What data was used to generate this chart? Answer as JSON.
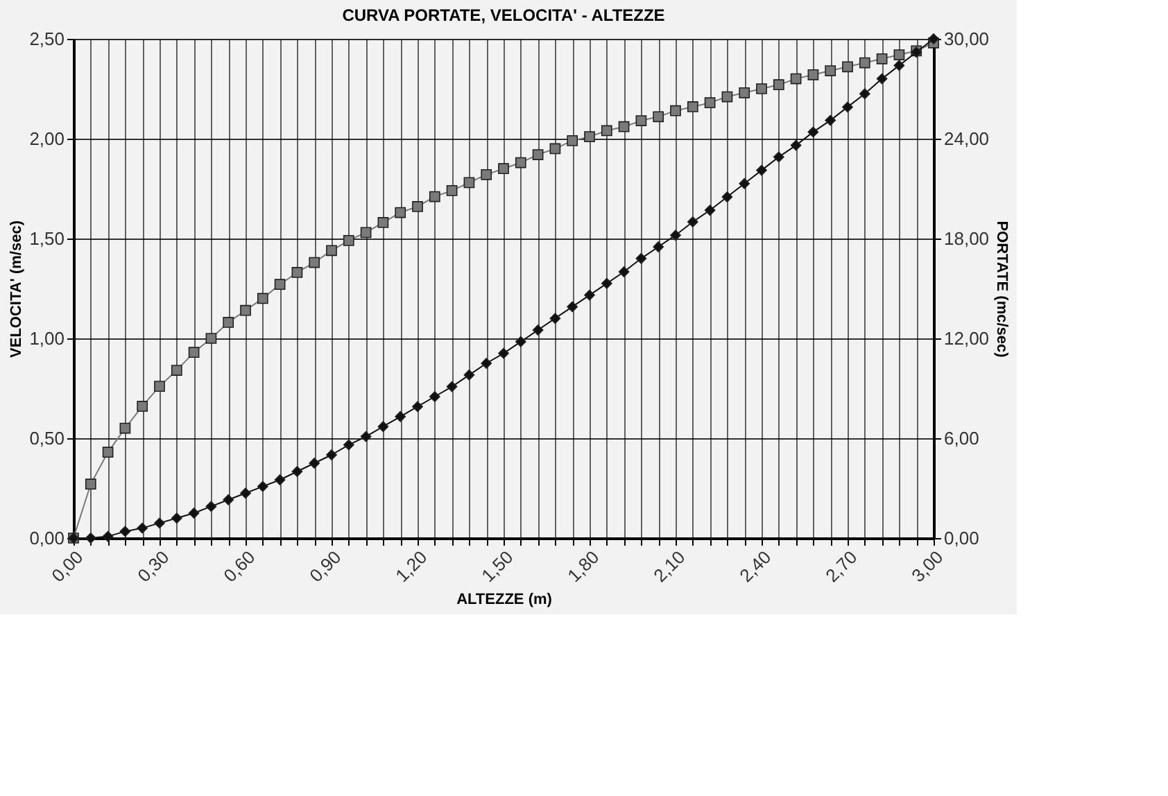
{
  "chart_data": {
    "type": "line",
    "title": "CURVA PORTATE, VELOCITA' - ALTEZZE",
    "xlabel": "ALTEZZE (m)",
    "ylabel": "VELOCITA' (m/sec)",
    "y2label": "PORTATE (mc/sec)",
    "x": [
      0,
      0.06,
      0.12,
      0.18,
      0.24,
      0.3,
      0.36,
      0.42,
      0.48,
      0.54,
      0.6,
      0.66,
      0.72,
      0.78,
      0.84,
      0.9,
      0.96,
      1.02,
      1.08,
      1.14,
      1.2,
      1.26,
      1.32,
      1.38,
      1.44,
      1.5,
      1.56,
      1.62,
      1.68,
      1.74,
      1.8,
      1.86,
      1.92,
      1.98,
      2.04,
      2.1,
      2.16,
      2.22,
      2.28,
      2.34,
      2.4,
      2.46,
      2.52,
      2.58,
      2.64,
      2.7,
      2.76,
      2.82,
      2.88,
      2.94,
      3.0
    ],
    "series": [
      {
        "color": "#7a7a7a",
        "marker": "square",
        "values": [
          0,
          0.27,
          0.43,
          0.55,
          0.66,
          0.76,
          0.84,
          0.93,
          1.0,
          1.08,
          1.14,
          1.2,
          1.27,
          1.33,
          1.38,
          1.44,
          1.49,
          1.53,
          1.58,
          1.63,
          1.66,
          1.71,
          1.74,
          1.78,
          1.82,
          1.85,
          1.88,
          1.92,
          1.95,
          1.99,
          2.01,
          2.04,
          2.06,
          2.09,
          2.11,
          2.14,
          2.16,
          2.18,
          2.21,
          2.23,
          2.25,
          2.27,
          2.3,
          2.32,
          2.34,
          2.36,
          2.38,
          2.4,
          2.42,
          2.44,
          2.48
        ]
      },
      {
        "color": "#111111",
        "marker": "diamond",
        "axis": "y2",
        "values": [
          0,
          0.0,
          0.1,
          0.4,
          0.6,
          0.9,
          1.2,
          1.5,
          1.9,
          2.3,
          2.7,
          3.1,
          3.5,
          4.0,
          4.5,
          5.0,
          5.6,
          6.1,
          6.7,
          7.3,
          7.9,
          8.5,
          9.1,
          9.8,
          10.5,
          11.1,
          11.8,
          12.5,
          13.2,
          13.9,
          14.6,
          15.3,
          16.0,
          16.8,
          17.5,
          18.2,
          19.0,
          19.7,
          20.5,
          21.3,
          22.1,
          22.9,
          23.6,
          24.4,
          25.1,
          25.9,
          26.7,
          27.6,
          28.4,
          29.2,
          30.0
        ]
      }
    ],
    "xlim": [
      0,
      3.0
    ],
    "xticks": [
      {
        "value": 0,
        "label": "0,00"
      },
      {
        "value": 0.06,
        "label": null
      },
      {
        "value": 0.12,
        "label": null
      },
      {
        "value": 0.18,
        "label": null
      },
      {
        "value": 0.24,
        "label": null
      },
      {
        "value": 0.3,
        "label": "0,30"
      },
      {
        "value": 0.36,
        "label": null
      },
      {
        "value": 0.42,
        "label": null
      },
      {
        "value": 0.48,
        "label": null
      },
      {
        "value": 0.54,
        "label": null
      },
      {
        "value": 0.6,
        "label": "0,60"
      },
      {
        "value": 0.66,
        "label": null
      },
      {
        "value": 0.72,
        "label": null
      },
      {
        "value": 0.78,
        "label": null
      },
      {
        "value": 0.84,
        "label": null
      },
      {
        "value": 0.9,
        "label": "0,90"
      },
      {
        "value": 0.96,
        "label": null
      },
      {
        "value": 1.02,
        "label": null
      },
      {
        "value": 1.08,
        "label": null
      },
      {
        "value": 1.14,
        "label": null
      },
      {
        "value": 1.2,
        "label": "1,20"
      },
      {
        "value": 1.26,
        "label": null
      },
      {
        "value": 1.32,
        "label": null
      },
      {
        "value": 1.38,
        "label": null
      },
      {
        "value": 1.44,
        "label": null
      },
      {
        "value": 1.5,
        "label": "1,50"
      },
      {
        "value": 1.56,
        "label": null
      },
      {
        "value": 1.62,
        "label": null
      },
      {
        "value": 1.68,
        "label": null
      },
      {
        "value": 1.74,
        "label": null
      },
      {
        "value": 1.8,
        "label": "1,80"
      },
      {
        "value": 1.86,
        "label": null
      },
      {
        "value": 1.92,
        "label": null
      },
      {
        "value": 1.98,
        "label": null
      },
      {
        "value": 2.04,
        "label": null
      },
      {
        "value": 2.1,
        "label": "2,10"
      },
      {
        "value": 2.16,
        "label": null
      },
      {
        "value": 2.22,
        "label": null
      },
      {
        "value": 2.28,
        "label": null
      },
      {
        "value": 2.34,
        "label": null
      },
      {
        "value": 2.4,
        "label": "2,40"
      },
      {
        "value": 2.46,
        "label": null
      },
      {
        "value": 2.52,
        "label": null
      },
      {
        "value": 2.58,
        "label": null
      },
      {
        "value": 2.64,
        "label": null
      },
      {
        "value": 2.7,
        "label": "2,70"
      },
      {
        "value": 2.76,
        "label": null
      },
      {
        "value": 2.82,
        "label": null
      },
      {
        "value": 2.88,
        "label": null
      },
      {
        "value": 2.94,
        "label": null
      },
      {
        "value": 3.0,
        "label": "3,00"
      }
    ],
    "ylim": [
      0,
      2.5
    ],
    "yticks": [
      {
        "value": 0,
        "label": "0,00"
      },
      {
        "value": 0.5,
        "label": "0,50"
      },
      {
        "value": 1.0,
        "label": "1,00"
      },
      {
        "value": 1.5,
        "label": "1,50"
      },
      {
        "value": 2.0,
        "label": "2,00"
      },
      {
        "value": 2.5,
        "label": "2,50"
      }
    ],
    "y2lim": [
      0,
      30
    ],
    "y2ticks": [
      {
        "value": 0,
        "label": "0,00"
      },
      {
        "value": 6,
        "label": "6,00"
      },
      {
        "value": 12,
        "label": "12,00"
      },
      {
        "value": 18,
        "label": "18,00"
      },
      {
        "value": 24,
        "label": "24,00"
      },
      {
        "value": 30,
        "label": "30,00"
      }
    ],
    "grid": true,
    "line_style": "solid"
  }
}
